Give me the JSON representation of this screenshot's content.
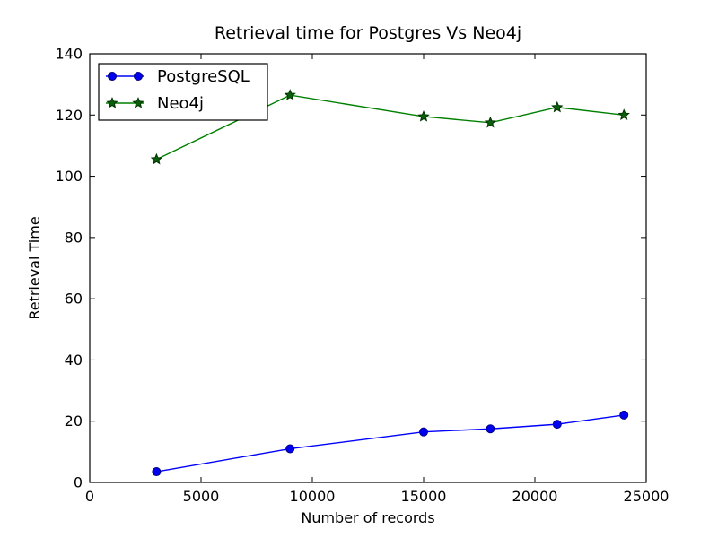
{
  "figure": {
    "background": "#ffffff",
    "frame_color": "#000000",
    "text_color": "#000000"
  },
  "chart_data": {
    "type": "line",
    "title": "Retrieval time for Postgres Vs Neo4j",
    "xlabel": "Number of records",
    "ylabel": "Retrieval Time",
    "xlim": [
      0,
      25000
    ],
    "ylim": [
      0,
      140
    ],
    "xticks": [
      0,
      5000,
      10000,
      15000,
      20000,
      25000
    ],
    "yticks": [
      0,
      20,
      40,
      60,
      80,
      100,
      120,
      140
    ],
    "grid": false,
    "legend_position": "upper-left",
    "x": [
      3000,
      9000,
      15000,
      18000,
      21000,
      24000
    ],
    "series": [
      {
        "name": "PostgreSQL",
        "marker": "circle",
        "color": "#0000ff",
        "marker_fill": "#0000f0",
        "marker_edge": "#000080",
        "values": [
          3.5,
          11,
          16.5,
          17.5,
          19,
          22
        ]
      },
      {
        "name": "Neo4j",
        "marker": "star",
        "color": "#008000",
        "marker_fill": "#0a5f0a",
        "marker_edge": "#003300",
        "values": [
          105.5,
          126.5,
          119.5,
          117.5,
          122.5,
          120
        ]
      }
    ]
  }
}
